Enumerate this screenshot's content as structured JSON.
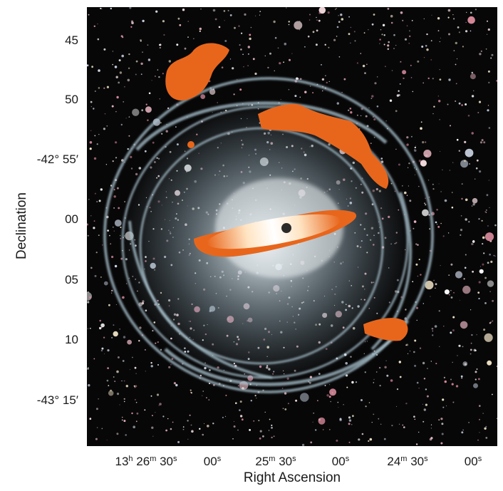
{
  "axes": {
    "y_title": "Declination",
    "x_title": "Right Ascension",
    "y_ticks": [
      {
        "deg": "",
        "min": "45"
      },
      {
        "deg": "",
        "min": "50"
      },
      {
        "deg": "-42°",
        "min": "55′"
      },
      {
        "deg": "",
        "min": "00"
      },
      {
        "deg": "",
        "min": "05"
      },
      {
        "deg": "",
        "min": "10"
      },
      {
        "deg": "-43°",
        "min": "15′"
      }
    ],
    "x_ticks": [
      {
        "h": "13",
        "m": "26",
        "s": "30"
      },
      {
        "h": "",
        "m": "",
        "s": "00"
      },
      {
        "h": "",
        "m": "25",
        "s": "30"
      },
      {
        "h": "",
        "m": "",
        "s": "00"
      },
      {
        "h": "",
        "m": "24",
        "s": "30"
      },
      {
        "h": "",
        "m": "",
        "s": "00"
      }
    ],
    "units": {
      "h": "h",
      "m": "m",
      "s": "s"
    }
  },
  "colors": {
    "background": "#070708",
    "halo_shells": "#a9c3cf",
    "galaxy_core": "#e9eef0",
    "radio_emission": "#e8661c",
    "radio_core": "#fff1d6"
  }
}
